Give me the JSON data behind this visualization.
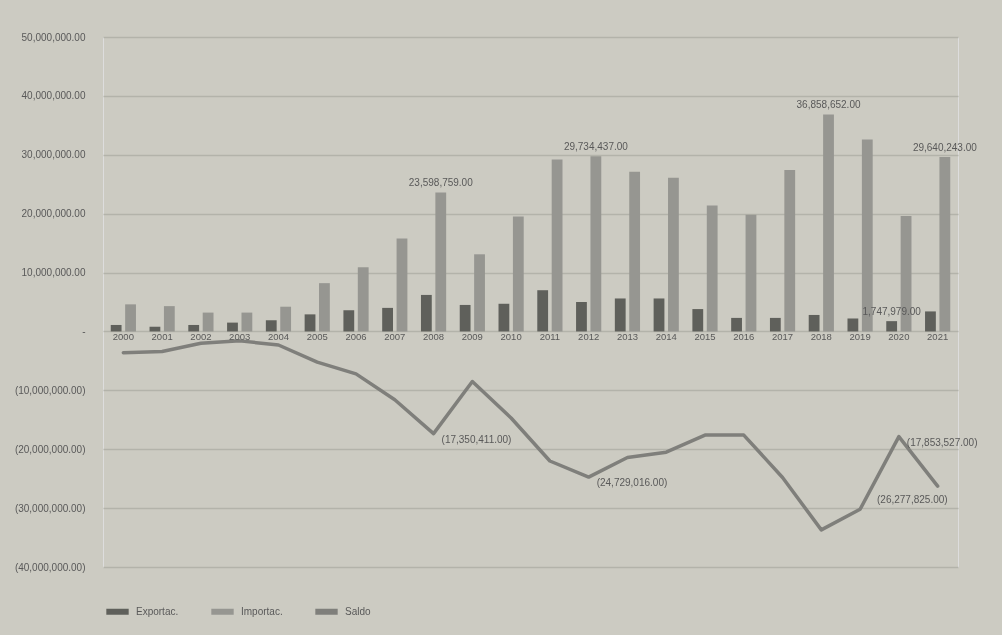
{
  "chart_data": {
    "type": "bar",
    "categories": [
      "2000",
      "2001",
      "2002",
      "2003",
      "2004",
      "2005",
      "2006",
      "2007",
      "2008",
      "2009",
      "2010",
      "2011",
      "2012",
      "2013",
      "2014",
      "2015",
      "2016",
      "2017",
      "2018",
      "2019",
      "2020",
      "2021"
    ],
    "ylim": [
      -40000000,
      50000000
    ],
    "yticks": [
      {
        "value": -40000000,
        "label": "(40,000,000.00)"
      },
      {
        "value": -30000000,
        "label": "(30,000,000.00)"
      },
      {
        "value": -20000000,
        "label": "(20,000,000.00)"
      },
      {
        "value": -10000000,
        "label": "(10,000,000.00)"
      },
      {
        "value": 0,
        "label": "-"
      },
      {
        "value": 10000000,
        "label": "10,000,000.00"
      },
      {
        "value": 20000000,
        "label": "20,000,000.00"
      },
      {
        "value": 30000000,
        "label": "30,000,000.00"
      },
      {
        "value": 40000000,
        "label": "40,000,000.00"
      },
      {
        "value": 50000000,
        "label": "50,000,000.00"
      }
    ],
    "grid": "y",
    "legend": "bottom",
    "series": [
      {
        "name": "Exportac.",
        "color": "#5f605b",
        "values": [
          1100000,
          800000,
          1100000,
          1500000,
          1900000,
          2900000,
          3600000,
          4000000,
          6200000,
          4500000,
          4700000,
          7000000,
          5000000,
          5600000,
          5600000,
          3800000,
          2300000,
          2300000,
          2800000,
          2200000,
          1747979,
          3400000
        ],
        "value_labels": [
          null,
          null,
          null,
          null,
          null,
          null,
          null,
          null,
          null,
          null,
          null,
          null,
          null,
          null,
          null,
          null,
          null,
          null,
          null,
          null,
          "1,747,979.00",
          null
        ]
      },
      {
        "name": "Importac.",
        "color": "#969691",
        "values": [
          4600000,
          4300000,
          3200000,
          3200000,
          4200000,
          8200000,
          10900000,
          15800000,
          23598759,
          13100000,
          19500000,
          29200000,
          29734437,
          27100000,
          26100000,
          21400000,
          19800000,
          27400000,
          36858652,
          32600000,
          19600000,
          29640243
        ],
        "value_labels": [
          null,
          null,
          null,
          null,
          null,
          null,
          null,
          null,
          "23,598,759.00",
          null,
          null,
          null,
          "29,734,437.00",
          null,
          null,
          null,
          null,
          null,
          "36,858,652.00",
          null,
          null,
          "29,640,243.00"
        ]
      },
      {
        "name": "Saldo",
        "type": "line",
        "color": "#7f7f7b",
        "values": [
          -3600000,
          -3400000,
          -2000000,
          -1600000,
          -2300000,
          -5200000,
          -7200000,
          -11600000,
          -17350411,
          -8500000,
          -14700000,
          -22000000,
          -24729016,
          -21400000,
          -20500000,
          -17600000,
          -17600000,
          -24800000,
          -33700000,
          -30200000,
          -17853527,
          -26277825
        ],
        "value_labels": [
          null,
          null,
          null,
          null,
          null,
          null,
          null,
          null,
          "(17,350,411.00)",
          null,
          null,
          null,
          "(24,729,016.00)",
          null,
          null,
          null,
          null,
          null,
          null,
          null,
          "(17,853,527.00)",
          "(26,277,825.00)"
        ]
      }
    ]
  }
}
